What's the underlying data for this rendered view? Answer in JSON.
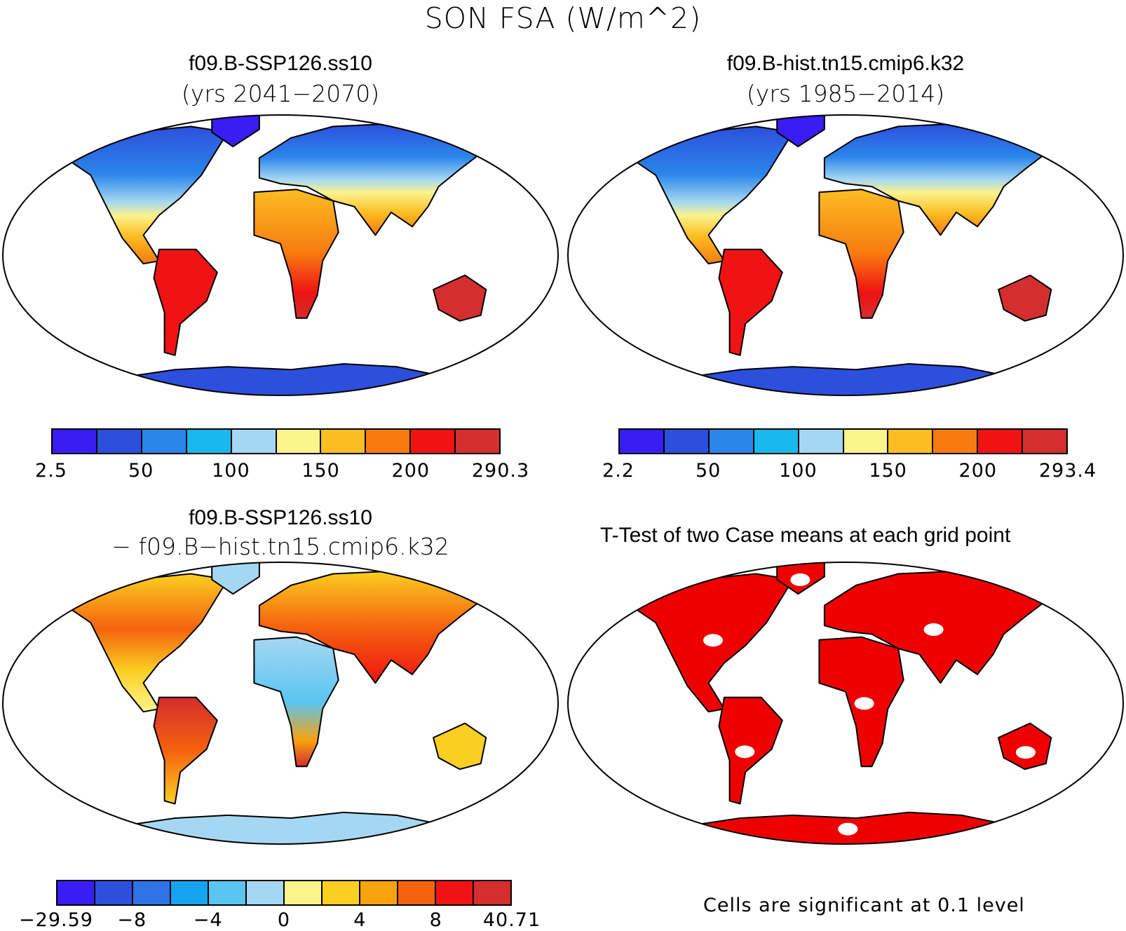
{
  "main_title": "SON FSA (W/m^2)",
  "panels": [
    {
      "title": "f09.B-SSP126.ss10",
      "subtitle": "(yrs 2041−2070)",
      "type": "abs"
    },
    {
      "title": "f09.B-hist.tn15.cmip6.k32",
      "subtitle": "(yrs 1985−2014)",
      "type": "abs"
    },
    {
      "title": "f09.B-SSP126.ss10",
      "subtitle": "− f09.B−hist.tn15.cmip6.k32",
      "type": "diff"
    },
    {
      "title": "T-Test of two Case means at each grid point",
      "subtitle": "",
      "type": "ttest"
    }
  ],
  "colorbars": [
    {
      "colors": [
        "#3a1cf5",
        "#2c4fdd",
        "#2b86ea",
        "#19b8ee",
        "#a6d7f2",
        "#fbf38c",
        "#fbbd22",
        "#f87a10",
        "#ef1313",
        "#d42e2e"
      ],
      "labels": [
        "2.5",
        "50",
        "100",
        "150",
        "200",
        "290.3"
      ]
    },
    {
      "colors": [
        "#3a1cf5",
        "#2c4fdd",
        "#2b86ea",
        "#19b8ee",
        "#a6d7f2",
        "#fbf38c",
        "#fbbd22",
        "#f87a10",
        "#ef1313",
        "#d42e2e"
      ],
      "labels": [
        "2.2",
        "50",
        "100",
        "150",
        "200",
        "293.4"
      ]
    },
    {
      "colors": [
        "#3a1cf5",
        "#2c4fdd",
        "#2e74e6",
        "#16a3ef",
        "#5ac5f1",
        "#a6d7f2",
        "#fbf38c",
        "#fbcf22",
        "#f9a20f",
        "#f5620d",
        "#ef1313",
        "#d42e2e"
      ],
      "labels": [
        "−29.59",
        "−8",
        "−4",
        "0",
        "4",
        "8",
        "40.71"
      ]
    }
  ],
  "significance_note": "Cells are significant at 0.1 level",
  "map_colors": {
    "ttest": "#ef0000",
    "outline": "#000000"
  }
}
